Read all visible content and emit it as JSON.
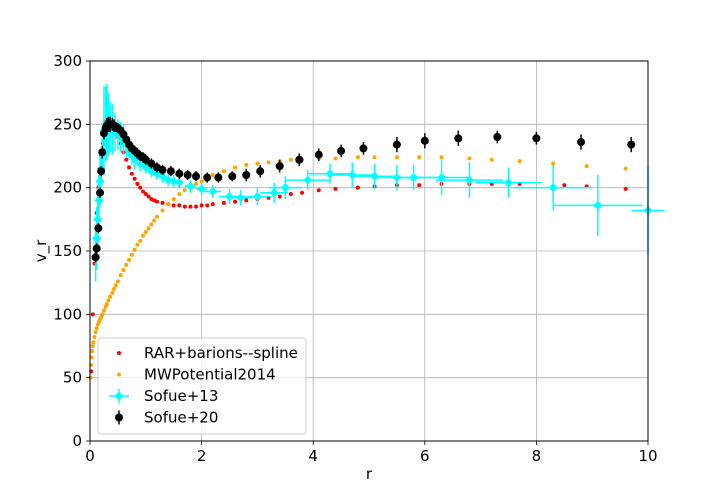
{
  "chart_data": {
    "type": "scatter",
    "xlabel": "r",
    "ylabel": "v_r",
    "xlim": [
      0,
      10
    ],
    "ylim": [
      0,
      300
    ],
    "x_ticks": [
      0,
      2,
      4,
      6,
      8,
      10
    ],
    "y_ticks": [
      0,
      50,
      100,
      150,
      200,
      250,
      300
    ],
    "grid": true,
    "legend_position": "lower-left",
    "series": [
      {
        "name": "RAR+barions--spline",
        "color": "#ff0000",
        "marker": "dot",
        "x": [
          0.02,
          0.05,
          0.08,
          0.1,
          0.12,
          0.15,
          0.18,
          0.2,
          0.23,
          0.26,
          0.3,
          0.33,
          0.36,
          0.4,
          0.43,
          0.46,
          0.5,
          0.55,
          0.6,
          0.65,
          0.7,
          0.75,
          0.8,
          0.85,
          0.9,
          0.95,
          1.0,
          1.05,
          1.1,
          1.15,
          1.2,
          1.3,
          1.4,
          1.5,
          1.6,
          1.7,
          1.8,
          1.9,
          2.0,
          2.1,
          2.2,
          2.4,
          2.6,
          2.8,
          3.0,
          3.2,
          3.4,
          3.6,
          3.8,
          4.1,
          4.4,
          4.8,
          5.1,
          5.5,
          5.9,
          6.3,
          6.8,
          7.2,
          7.7,
          8.5,
          8.9,
          9.6
        ],
        "y": [
          55,
          100,
          140,
          160,
          180,
          200,
          215,
          225,
          235,
          240,
          243,
          245,
          246,
          246,
          245,
          243,
          240,
          235,
          228,
          222,
          216,
          211,
          207,
          203,
          200,
          197,
          195,
          193,
          191,
          190,
          189,
          188,
          187,
          186,
          186,
          185,
          185,
          185,
          186,
          186,
          187,
          188,
          189,
          190,
          191,
          192,
          193,
          195,
          196,
          198,
          199,
          200,
          201,
          202,
          202,
          203,
          203,
          203,
          203,
          202,
          201,
          199
        ]
      },
      {
        "name": "MWPotential2014",
        "color": "#ffa500",
        "marker": "dot",
        "x": [
          0.01,
          0.02,
          0.03,
          0.04,
          0.05,
          0.06,
          0.08,
          0.1,
          0.12,
          0.14,
          0.16,
          0.18,
          0.2,
          0.22,
          0.25,
          0.28,
          0.3,
          0.33,
          0.36,
          0.4,
          0.43,
          0.46,
          0.5,
          0.55,
          0.6,
          0.65,
          0.7,
          0.75,
          0.8,
          0.85,
          0.9,
          0.95,
          1.0,
          1.05,
          1.1,
          1.15,
          1.2,
          1.3,
          1.4,
          1.5,
          1.6,
          1.7,
          1.8,
          1.9,
          2.0,
          2.2,
          2.4,
          2.6,
          2.8,
          3.0,
          3.2,
          3.4,
          3.6,
          3.8,
          4.1,
          4.4,
          4.8,
          5.1,
          5.5,
          5.9,
          6.3,
          6.8,
          7.2,
          7.7,
          8.3,
          8.9,
          9.6
        ],
        "y": [
          50,
          60,
          66,
          71,
          75,
          78,
          82,
          86,
          89,
          92,
          94,
          96,
          98,
          100,
          103,
          106,
          108,
          111,
          114,
          117,
          120,
          123,
          126,
          131,
          135,
          139,
          143,
          147,
          151,
          155,
          158,
          162,
          165,
          168,
          171,
          174,
          177,
          182,
          187,
          191,
          195,
          198,
          201,
          203,
          205,
          210,
          213,
          216,
          218,
          219,
          220,
          221,
          222,
          222,
          223,
          223,
          224,
          224,
          224,
          224,
          224,
          223,
          222,
          221,
          219,
          217,
          215
        ]
      },
      {
        "name": "Sofue+13",
        "color": "#00ffff",
        "marker": "diamond",
        "x": [
          0.1,
          0.12,
          0.14,
          0.16,
          0.18,
          0.2,
          0.22,
          0.25,
          0.28,
          0.3,
          0.33,
          0.36,
          0.4,
          0.45,
          0.5,
          0.55,
          0.6,
          0.65,
          0.7,
          0.75,
          0.8,
          0.9,
          1.0,
          1.1,
          1.2,
          1.3,
          1.4,
          1.5,
          1.6,
          1.8,
          2.0,
          2.2,
          2.5,
          2.7,
          3.0,
          3.3,
          3.5,
          3.9,
          4.3,
          4.7,
          5.1,
          5.5,
          5.8,
          6.3,
          6.8,
          7.5,
          8.3,
          9.1,
          10.0
        ],
        "y": [
          146,
          160,
          175,
          190,
          205,
          215,
          228,
          245,
          250,
          252,
          250,
          248,
          246,
          244,
          242,
          240,
          238,
          234,
          230,
          226,
          222,
          219,
          216,
          213,
          211,
          209,
          206,
          205,
          204,
          201,
          199,
          197,
          193,
          192,
          193,
          196,
          200,
          206,
          211,
          210,
          209,
          208,
          208,
          208,
          206,
          204,
          200,
          186,
          182
        ],
        "yerr": [
          20,
          25,
          25,
          20,
          20,
          15,
          15,
          35,
          30,
          30,
          25,
          20,
          20,
          15,
          12,
          12,
          12,
          10,
          8,
          8,
          8,
          6,
          5,
          5,
          5,
          5,
          5,
          5,
          5,
          5,
          5,
          5,
          6,
          6,
          7,
          8,
          9,
          8,
          8,
          10,
          10,
          10,
          10,
          14,
          14,
          12,
          18,
          24,
          35
        ],
        "xerr": [
          0.02,
          0.02,
          0.02,
          0.02,
          0.02,
          0.02,
          0.02,
          0.02,
          0.02,
          0.02,
          0.02,
          0.02,
          0.02,
          0.03,
          0.03,
          0.03,
          0.03,
          0.03,
          0.03,
          0.03,
          0.05,
          0.05,
          0.05,
          0.05,
          0.05,
          0.05,
          0.05,
          0.05,
          0.05,
          0.1,
          0.1,
          0.15,
          0.2,
          0.2,
          0.25,
          0.25,
          0.3,
          0.4,
          0.4,
          0.4,
          0.4,
          0.4,
          0.4,
          0.5,
          0.6,
          0.6,
          0.7,
          0.8,
          0.3
        ]
      },
      {
        "name": "Sofue+20",
        "color": "#000000",
        "marker": "circle",
        "x": [
          0.1,
          0.12,
          0.15,
          0.18,
          0.2,
          0.22,
          0.25,
          0.28,
          0.3,
          0.33,
          0.36,
          0.4,
          0.43,
          0.46,
          0.5,
          0.55,
          0.6,
          0.65,
          0.7,
          0.75,
          0.8,
          0.85,
          0.9,
          0.95,
          1.0,
          1.1,
          1.2,
          1.3,
          1.45,
          1.6,
          1.75,
          1.9,
          2.1,
          2.3,
          2.55,
          2.8,
          3.05,
          3.4,
          3.75,
          4.1,
          4.5,
          4.9,
          5.5,
          6.0,
          6.6,
          7.3,
          8.0,
          8.8,
          9.7
        ],
        "y": [
          145,
          152,
          168,
          196,
          213,
          228,
          243,
          247,
          249,
          250,
          250,
          250,
          249,
          248,
          247,
          245,
          242,
          238,
          234,
          231,
          229,
          227,
          225,
          224,
          222,
          219,
          216,
          214,
          213,
          211,
          210,
          209,
          208,
          208,
          209,
          210,
          213,
          217,
          222,
          226,
          229,
          231,
          234,
          237,
          239,
          240,
          239,
          236,
          234
        ],
        "yerr": [
          4,
          4,
          4,
          4,
          4,
          5,
          5,
          6,
          6,
          6,
          6,
          5,
          5,
          4,
          4,
          4,
          4,
          4,
          4,
          4,
          4,
          4,
          4,
          4,
          4,
          4,
          4,
          4,
          4,
          4,
          4,
          4,
          4,
          4,
          4,
          5,
          5,
          5,
          5,
          5,
          5,
          5,
          6,
          6,
          6,
          5,
          5,
          6,
          6
        ]
      }
    ]
  }
}
